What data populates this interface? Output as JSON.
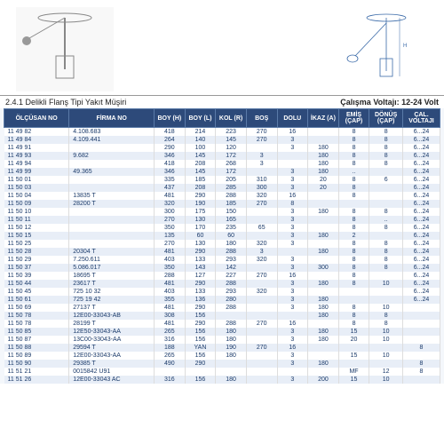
{
  "section_title": "2.4.1 Delikli Flanş Tipi Yakıt Müşiri",
  "voltage_label": "Çalışma Voltajı: 12-24 Volt",
  "colors": {
    "header_bg": "#2d4a7a",
    "header_fg": "#ffffff",
    "row_even": "#e8eef7",
    "row_odd": "#ffffff",
    "text": "#1a3a6a"
  },
  "columns": [
    "ÖLÇÜSAN NO",
    "FİRMA NO",
    "BOY (H)",
    "BOY (L)",
    "KOL (R)",
    "BOŞ",
    "DOLU",
    "İKAZ (A)",
    "EMİŞ (ÇAP)",
    "DÖNÜŞ (ÇAP)",
    "ÇAL. VOLTAJI"
  ],
  "rows": [
    [
      "11 49 82",
      "4.108.683",
      "418",
      "214",
      "223",
      "270",
      "16",
      "",
      "8",
      "8",
      "6...24"
    ],
    [
      "11 49 84",
      "4.109.441",
      "264",
      "140",
      "145",
      "270",
      "3",
      "",
      "8",
      "8",
      "6...24"
    ],
    [
      "11 49 91",
      "",
      "290",
      "100",
      "120",
      "",
      "3",
      "180",
      "8",
      "8",
      "6...24"
    ],
    [
      "11 49 93",
      "9.682",
      "346",
      "145",
      "172",
      "3",
      "",
      "180",
      "8",
      "8",
      "6...24"
    ],
    [
      "11 49 94",
      "",
      "418",
      "208",
      "268",
      "3",
      "",
      "180",
      "8",
      "8",
      "6...24"
    ],
    [
      "11 49 99",
      "49.365",
      "346",
      "145",
      "172",
      "",
      "3",
      "180",
      "..",
      "",
      "6...24"
    ],
    [
      "11 50 01",
      "",
      "335",
      "185",
      "205",
      "310",
      "3",
      "20",
      "8",
      "6",
      "6...24"
    ],
    [
      "11 50 03",
      "",
      "437",
      "208",
      "285",
      "300",
      "3",
      "20",
      "8",
      "",
      "6...24"
    ],
    [
      "11 50 04",
      "13835 T",
      "481",
      "290",
      "288",
      "320",
      "16",
      "",
      "8",
      "",
      "6...24"
    ],
    [
      "11 50 09",
      "28200 T",
      "320",
      "190",
      "185",
      "270",
      "8",
      "",
      "",
      "",
      "6...24"
    ],
    [
      "11 50 10",
      "",
      "300",
      "175",
      "150",
      "",
      "3",
      "180",
      "8",
      "8",
      "6...24"
    ],
    [
      "11 50 11",
      "",
      "270",
      "130",
      "165",
      "",
      "3",
      "",
      "8",
      "..",
      "6...24"
    ],
    [
      "11 50 12",
      "",
      "350",
      "170",
      "235",
      "65",
      "3",
      "",
      "8",
      "8",
      "6...24"
    ],
    [
      "11 50 15",
      "",
      "135",
      "60",
      "60",
      "",
      "3",
      "180",
      "2",
      "",
      "6...24"
    ],
    [
      "11 50 25",
      "",
      "270",
      "130",
      "180",
      "320",
      "3",
      "",
      "8",
      "8",
      "6...24"
    ],
    [
      "11 50 28",
      "20304 T",
      "481",
      "290",
      "288",
      "3",
      "",
      "180",
      "8",
      "8",
      "6...24"
    ],
    [
      "11 50 29",
      "7.250.611",
      "403",
      "133",
      "293",
      "320",
      "3",
      "",
      "8",
      "8",
      "6...24"
    ],
    [
      "11 50 37",
      "5.086.017",
      "350",
      "143",
      "142",
      "",
      "3",
      "300",
      "8",
      "8",
      "6...24"
    ],
    [
      "11 50 39",
      "18695 T",
      "288",
      "127",
      "227",
      "270",
      "16",
      "",
      "8",
      "",
      "6...24"
    ],
    [
      "11 50 44",
      "23617 T",
      "481",
      "290",
      "288",
      "",
      "3",
      "180",
      "8",
      "10",
      "6...24"
    ],
    [
      "11 50 45",
      "725 10 32",
      "403",
      "133",
      "293",
      "320",
      "3",
      "",
      "",
      "",
      "6...24"
    ],
    [
      "11 50 61",
      "725 19 42",
      "355",
      "136",
      "280",
      "",
      "3",
      "180",
      "",
      "",
      "6...24"
    ],
    [
      "11 50 69",
      "27137 T",
      "481",
      "290",
      "288",
      "",
      "3",
      "180",
      "8",
      "10",
      ""
    ],
    [
      "11 50 78",
      "12E00-33043-AB",
      "308",
      "156",
      "",
      "",
      "",
      "180",
      "8",
      "8",
      ""
    ],
    [
      "11 50 78",
      "28199 T",
      "481",
      "290",
      "288",
      "270",
      "16",
      "",
      "8",
      "8",
      ""
    ],
    [
      "11 50 85",
      "12E50-33043-AA",
      "265",
      "156",
      "180",
      "",
      "3",
      "180",
      "15",
      "10",
      ""
    ],
    [
      "11 50 87",
      "13C00-33043-AA",
      "316",
      "156",
      "180",
      "",
      "3",
      "180",
      "20",
      "10",
      ""
    ],
    [
      "11 50 88",
      "29594 T",
      "188",
      "YAN",
      "190",
      "270",
      "16",
      "",
      "",
      "",
      "8"
    ],
    [
      "11 50 89",
      "12E00-33043-AA",
      "265",
      "156",
      "180",
      "",
      "3",
      "",
      "15",
      "10",
      ""
    ],
    [
      "11 50 90",
      "29385 T",
      "490",
      "290",
      "",
      "",
      "3",
      "180",
      "",
      "",
      "8"
    ],
    [
      "11 51 21",
      "0015842 U91",
      "",
      "",
      "",
      "",
      "",
      "",
      "MF",
      "12",
      "8"
    ],
    [
      "11 51 26",
      "12E00-33043 AC",
      "316",
      "156",
      "180",
      "",
      "3",
      "200",
      "15",
      "10",
      ""
    ]
  ]
}
